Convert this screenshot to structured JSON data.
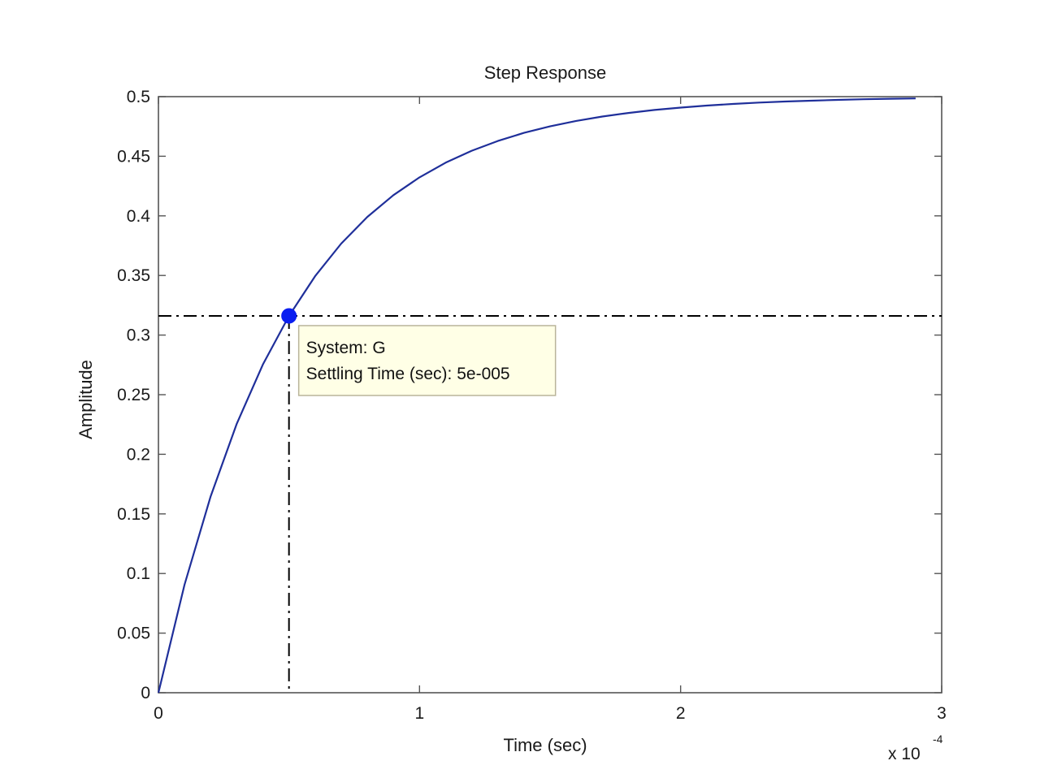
{
  "colors": {
    "background": "#ffffff",
    "axes": "#555555",
    "curve": "#1f2f9a",
    "marker": "#0a1ef0",
    "crosshair": "#000000",
    "tooltip_bg": "#ffffe6",
    "tooltip_border": "#b9b49a"
  },
  "chart_data": {
    "type": "line",
    "title": "Step Response",
    "xlabel": "Time (sec)",
    "ylabel": "Amplitude",
    "x_exponent_label": "x 10",
    "x_exponent_power": "-4",
    "xlim": [
      0,
      3
    ],
    "ylim": [
      0,
      0.5
    ],
    "xticks": [
      "0",
      "1",
      "2",
      "3"
    ],
    "yticks": [
      "0",
      "0.05",
      "0.1",
      "0.15",
      "0.2",
      "0.25",
      "0.3",
      "0.35",
      "0.4",
      "0.45",
      "0.5"
    ],
    "grid": false,
    "series": [
      {
        "name": "G",
        "x": [
          0,
          0.1,
          0.2,
          0.3,
          0.4,
          0.5,
          0.6,
          0.7,
          0.8,
          0.9,
          1.0,
          1.1,
          1.2,
          1.3,
          1.4,
          1.5,
          1.6,
          1.7,
          1.8,
          1.9,
          2.0,
          2.1,
          2.2,
          2.3,
          2.4,
          2.5,
          2.6,
          2.7,
          2.8,
          2.9
        ],
        "y": [
          0,
          0.0906,
          0.1648,
          0.2256,
          0.2753,
          0.3161,
          0.3494,
          0.3767,
          0.3991,
          0.4174,
          0.4323,
          0.4446,
          0.4546,
          0.4628,
          0.4696,
          0.4751,
          0.4796,
          0.4833,
          0.4863,
          0.4888,
          0.4908,
          0.4925,
          0.4939,
          0.495,
          0.4959,
          0.4966,
          0.4973,
          0.4978,
          0.4982,
          0.4985
        ]
      }
    ],
    "datatip": {
      "x": 0.5,
      "y": 0.3161,
      "line1": "System: G",
      "line2": "Settling Time (sec): 5e-005"
    }
  }
}
